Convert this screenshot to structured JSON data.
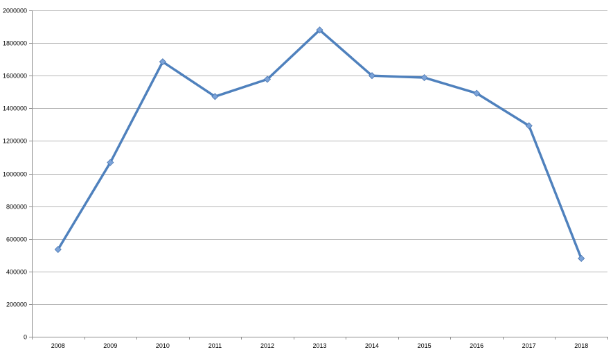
{
  "chart_data": {
    "type": "line",
    "categories": [
      "2008",
      "2009",
      "2010",
      "2011",
      "2012",
      "2013",
      "2014",
      "2015",
      "2016",
      "2017",
      "2018"
    ],
    "series": [
      {
        "values": [
          535000,
          1068000,
          1685000,
          1472000,
          1578000,
          1880000,
          1600000,
          1588000,
          1492000,
          1293000,
          480000
        ],
        "color": "#4F81BD",
        "marker": "diamond"
      }
    ],
    "y_ticks": [
      "0",
      "200000",
      "400000",
      "600000",
      "800000",
      "1000000",
      "1200000",
      "1400000",
      "1600000",
      "1800000",
      "2000000"
    ],
    "ylim": [
      0,
      2000000
    ],
    "grid": true,
    "legend": "none"
  }
}
